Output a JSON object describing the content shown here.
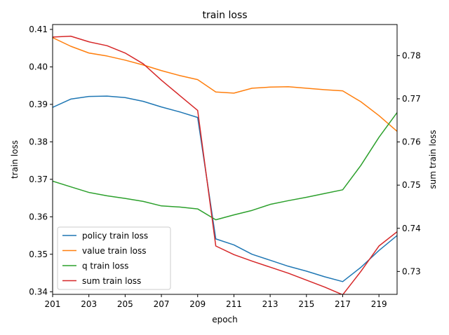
{
  "chart_data": {
    "type": "line",
    "title": "train loss",
    "xlabel": "epoch",
    "ylabel": "train loss",
    "y2label": "sum train loss",
    "x": [
      201,
      202,
      203,
      204,
      205,
      206,
      207,
      208,
      209,
      210,
      211,
      212,
      213,
      214,
      215,
      216,
      217,
      218,
      219,
      220
    ],
    "xticks": [
      "201",
      "203",
      "205",
      "207",
      "209",
      "211",
      "213",
      "215",
      "217",
      "219"
    ],
    "xticks_values": [
      201,
      203,
      205,
      207,
      209,
      211,
      213,
      215,
      217,
      219
    ],
    "xlim": [
      201,
      220
    ],
    "ylim": [
      0.3393,
      0.4113
    ],
    "y2lim": [
      0.7247,
      0.7872
    ],
    "yticks": [
      "0.34",
      "0.35",
      "0.36",
      "0.37",
      "0.38",
      "0.39",
      "0.40",
      "0.41"
    ],
    "yticks_values": [
      0.34,
      0.35,
      0.36,
      0.37,
      0.38,
      0.39,
      0.4,
      0.41
    ],
    "y2ticks": [
      "0.73",
      "0.74",
      "0.75",
      "0.76",
      "0.77",
      "0.78"
    ],
    "y2ticks_values": [
      0.73,
      0.74,
      0.75,
      0.76,
      0.77,
      0.78
    ],
    "legend_position": "lower-left",
    "grid": false,
    "series": [
      {
        "name": "policy train loss",
        "color": "#1f77b4",
        "axis": "left",
        "values": [
          0.3892,
          0.3914,
          0.3921,
          0.3922,
          0.3918,
          0.3908,
          0.3893,
          0.388,
          0.3865,
          0.3541,
          0.3525,
          0.35,
          0.3484,
          0.3468,
          0.3455,
          0.344,
          0.3427,
          0.3465,
          0.351,
          0.355
        ]
      },
      {
        "name": "value train loss",
        "color": "#ff7f0e",
        "axis": "left",
        "values": [
          0.4078,
          0.4055,
          0.4037,
          0.4029,
          0.4018,
          0.4005,
          0.399,
          0.3977,
          0.3966,
          0.3933,
          0.393,
          0.3943,
          0.3946,
          0.3947,
          0.3943,
          0.3939,
          0.3936,
          0.3907,
          0.387,
          0.3828
        ]
      },
      {
        "name": "q train loss",
        "color": "#2ca02c",
        "axis": "left",
        "values": [
          0.3695,
          0.368,
          0.3665,
          0.3656,
          0.3649,
          0.3641,
          0.3629,
          0.3626,
          0.3621,
          0.3592,
          0.3605,
          0.3617,
          0.3633,
          0.3643,
          0.3652,
          0.3662,
          0.3672,
          0.3737,
          0.3812,
          0.3878
        ]
      },
      {
        "name": "sum train loss",
        "color": "#d62728",
        "axis": "right",
        "values": [
          0.7843,
          0.7845,
          0.7832,
          0.7823,
          0.7806,
          0.7781,
          0.7743,
          0.7708,
          0.7673,
          0.7359,
          0.7339,
          0.7324,
          0.731,
          0.7296,
          0.728,
          0.7264,
          0.7246,
          0.73,
          0.7359,
          0.7392
        ]
      }
    ]
  }
}
